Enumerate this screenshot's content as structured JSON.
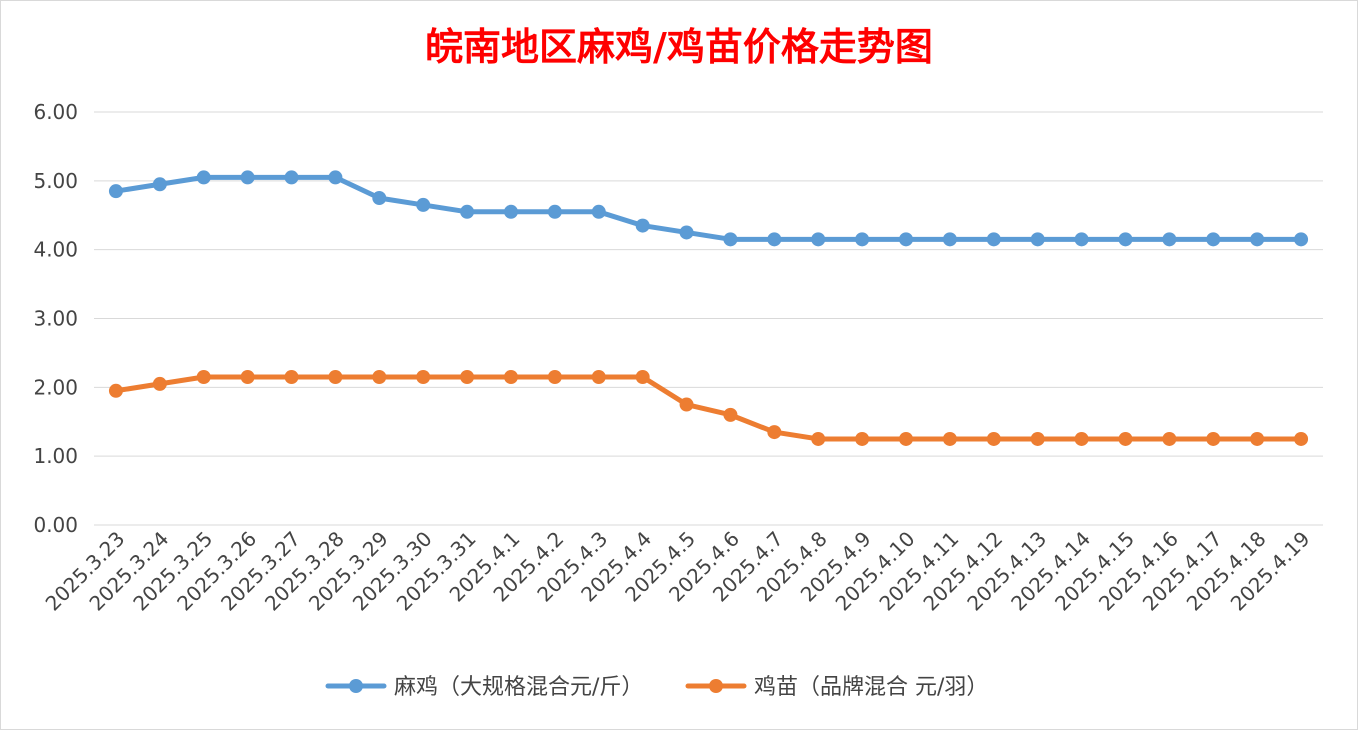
{
  "chart_data": {
    "type": "line",
    "title": "皖南地区麻鸡/鸡苗价格走势图",
    "title_color": "#ff0000",
    "xlabel": "",
    "ylabel": "",
    "ylim": [
      0,
      6
    ],
    "y_ticks": [
      "0.00",
      "1.00",
      "2.00",
      "3.00",
      "4.00",
      "5.00",
      "6.00"
    ],
    "grid": true,
    "legend_position": "bottom",
    "categories": [
      "2025.3.23",
      "2025.3.24",
      "2025.3.25",
      "2025.3.26",
      "2025.3.27",
      "2025.3.28",
      "2025.3.29",
      "2025.3.30",
      "2025.3.31",
      "2025.4.1",
      "2025.4.2",
      "2025.4.3",
      "2025.4.4",
      "2025.4.5",
      "2025.4.6",
      "2025.4.7",
      "2025.4.8",
      "2025.4.9",
      "2025.4.10",
      "2025.4.11",
      "2025.4.12",
      "2025.4.13",
      "2025.4.14",
      "2025.4.15",
      "2025.4.16",
      "2025.4.17",
      "2025.4.18",
      "2025.4.19"
    ],
    "series": [
      {
        "name": "麻鸡（大规格混合元/斤）",
        "color": "#5b9bd5",
        "values": [
          4.85,
          4.95,
          5.05,
          5.05,
          5.05,
          5.05,
          4.75,
          4.65,
          4.55,
          4.55,
          4.55,
          4.55,
          4.35,
          4.25,
          4.15,
          4.15,
          4.15,
          4.15,
          4.15,
          4.15,
          4.15,
          4.15,
          4.15,
          4.15,
          4.15,
          4.15,
          4.15,
          4.15
        ]
      },
      {
        "name": "鸡苗（品牌混合 元/羽）",
        "color": "#ed7d31",
        "values": [
          1.95,
          2.05,
          2.15,
          2.15,
          2.15,
          2.15,
          2.15,
          2.15,
          2.15,
          2.15,
          2.15,
          2.15,
          2.15,
          1.75,
          1.6,
          1.35,
          1.25,
          1.25,
          1.25,
          1.25,
          1.25,
          1.25,
          1.25,
          1.25,
          1.25,
          1.25,
          1.25,
          1.25
        ]
      }
    ]
  }
}
